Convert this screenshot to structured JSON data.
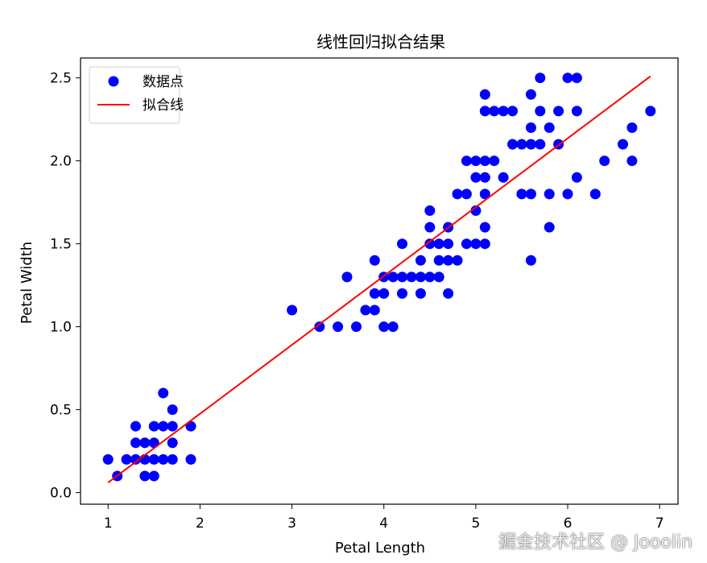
{
  "chart_data": {
    "type": "scatter",
    "title": "线性回归拟合结果",
    "xlabel": "Petal Length",
    "ylabel": "Petal Width",
    "xlim": [
      0.7,
      7.2
    ],
    "ylim": [
      -0.07,
      2.62
    ],
    "xticks": [
      "1",
      "2",
      "3",
      "4",
      "5",
      "6",
      "7"
    ],
    "xtick_values": [
      1,
      2,
      3,
      4,
      5,
      6,
      7
    ],
    "yticks": [
      "0.0",
      "0.5",
      "1.0",
      "1.5",
      "2.0",
      "2.5"
    ],
    "ytick_values": [
      0.0,
      0.5,
      1.0,
      1.5,
      2.0,
      2.5
    ],
    "grid": false,
    "legend_position": "upper-left",
    "series": [
      {
        "name": "数据点",
        "kind": "scatter",
        "color": "#0000ff",
        "points": [
          [
            1.0,
            0.2
          ],
          [
            1.1,
            0.1
          ],
          [
            1.2,
            0.2
          ],
          [
            1.3,
            0.2
          ],
          [
            1.3,
            0.3
          ],
          [
            1.3,
            0.4
          ],
          [
            1.4,
            0.1
          ],
          [
            1.4,
            0.2
          ],
          [
            1.4,
            0.3
          ],
          [
            1.5,
            0.1
          ],
          [
            1.5,
            0.2
          ],
          [
            1.5,
            0.3
          ],
          [
            1.5,
            0.4
          ],
          [
            1.6,
            0.2
          ],
          [
            1.6,
            0.4
          ],
          [
            1.6,
            0.6
          ],
          [
            1.7,
            0.2
          ],
          [
            1.7,
            0.3
          ],
          [
            1.7,
            0.4
          ],
          [
            1.7,
            0.5
          ],
          [
            1.9,
            0.2
          ],
          [
            1.9,
            0.4
          ],
          [
            3.0,
            1.1
          ],
          [
            3.3,
            1.0
          ],
          [
            3.5,
            1.0
          ],
          [
            3.6,
            1.3
          ],
          [
            3.7,
            1.0
          ],
          [
            3.8,
            1.1
          ],
          [
            3.9,
            1.1
          ],
          [
            3.9,
            1.2
          ],
          [
            3.9,
            1.4
          ],
          [
            4.0,
            1.0
          ],
          [
            4.0,
            1.2
          ],
          [
            4.0,
            1.3
          ],
          [
            4.1,
            1.0
          ],
          [
            4.1,
            1.3
          ],
          [
            4.2,
            1.2
          ],
          [
            4.2,
            1.3
          ],
          [
            4.2,
            1.5
          ],
          [
            4.3,
            1.3
          ],
          [
            4.4,
            1.2
          ],
          [
            4.4,
            1.3
          ],
          [
            4.4,
            1.4
          ],
          [
            4.5,
            1.3
          ],
          [
            4.5,
            1.5
          ],
          [
            4.5,
            1.6
          ],
          [
            4.5,
            1.7
          ],
          [
            4.6,
            1.3
          ],
          [
            4.6,
            1.4
          ],
          [
            4.6,
            1.5
          ],
          [
            4.7,
            1.2
          ],
          [
            4.7,
            1.4
          ],
          [
            4.7,
            1.5
          ],
          [
            4.7,
            1.6
          ],
          [
            4.8,
            1.4
          ],
          [
            4.8,
            1.8
          ],
          [
            4.9,
            1.5
          ],
          [
            4.9,
            1.8
          ],
          [
            4.9,
            2.0
          ],
          [
            5.0,
            1.5
          ],
          [
            5.0,
            1.7
          ],
          [
            5.0,
            1.9
          ],
          [
            5.0,
            2.0
          ],
          [
            5.1,
            1.5
          ],
          [
            5.1,
            1.6
          ],
          [
            5.1,
            1.8
          ],
          [
            5.1,
            1.9
          ],
          [
            5.1,
            2.0
          ],
          [
            5.1,
            2.3
          ],
          [
            5.1,
            2.4
          ],
          [
            5.2,
            2.0
          ],
          [
            5.2,
            2.3
          ],
          [
            5.3,
            1.9
          ],
          [
            5.3,
            2.3
          ],
          [
            5.4,
            2.1
          ],
          [
            5.4,
            2.3
          ],
          [
            5.5,
            1.8
          ],
          [
            5.5,
            2.1
          ],
          [
            5.6,
            1.4
          ],
          [
            5.6,
            1.8
          ],
          [
            5.6,
            2.1
          ],
          [
            5.6,
            2.2
          ],
          [
            5.6,
            2.4
          ],
          [
            5.7,
            2.1
          ],
          [
            5.7,
            2.3
          ],
          [
            5.7,
            2.5
          ],
          [
            5.8,
            1.6
          ],
          [
            5.8,
            1.8
          ],
          [
            5.8,
            2.2
          ],
          [
            5.9,
            2.1
          ],
          [
            5.9,
            2.3
          ],
          [
            6.0,
            1.8
          ],
          [
            6.0,
            2.5
          ],
          [
            6.1,
            1.9
          ],
          [
            6.1,
            2.3
          ],
          [
            6.1,
            2.5
          ],
          [
            6.3,
            1.8
          ],
          [
            6.4,
            2.0
          ],
          [
            6.6,
            2.1
          ],
          [
            6.7,
            2.0
          ],
          [
            6.7,
            2.2
          ],
          [
            6.9,
            2.3
          ]
        ]
      },
      {
        "name": "拟合线",
        "kind": "line",
        "color": "#ff0000",
        "points": [
          [
            1.0,
            0.06
          ],
          [
            6.9,
            2.51
          ]
        ]
      }
    ]
  },
  "watermark": "掘金技术社区 @ Jooolin"
}
